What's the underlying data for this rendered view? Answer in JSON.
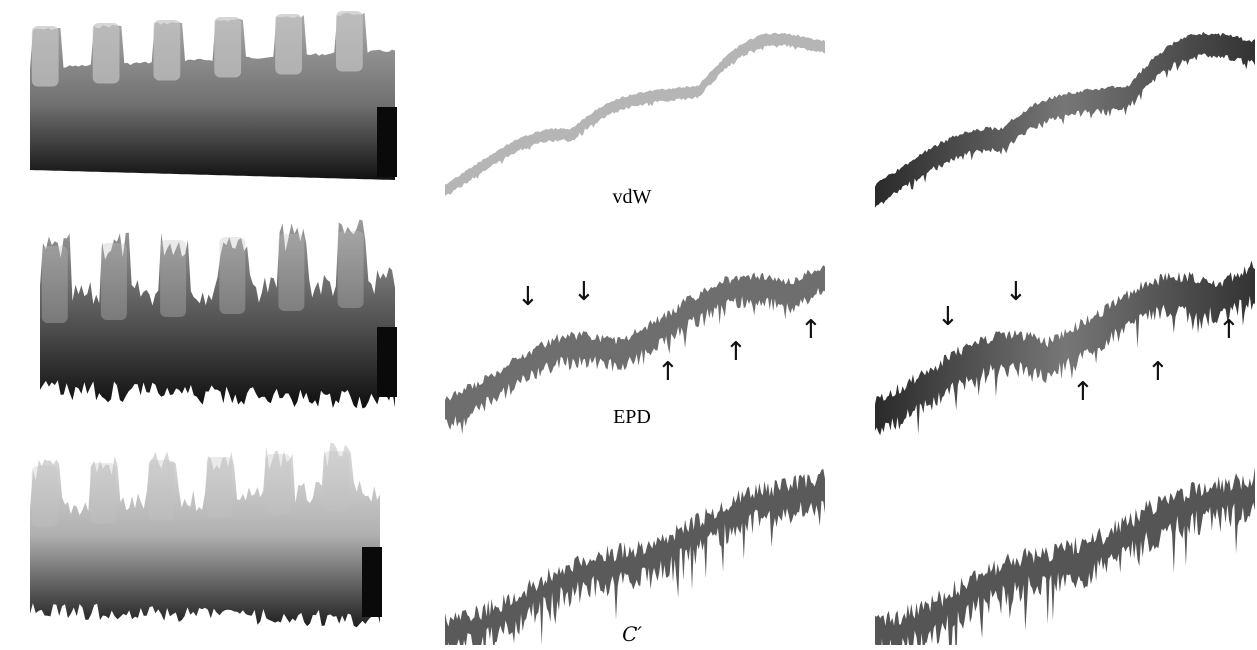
{
  "figure": {
    "rows": [
      {
        "caption": "vdW",
        "style": "smooth"
      },
      {
        "caption": "EPD",
        "style": "rough"
      },
      {
        "caption": "C′",
        "style": "noisy"
      }
    ],
    "arrows": {
      "down_glyph": "↓",
      "up_glyph": "↑"
    }
  },
  "colors": {
    "surface_light": "#d8d8d8",
    "surface_mid": "#8a8a8a",
    "surface_dark": "#1a1a1a",
    "background": "#ffffff"
  }
}
